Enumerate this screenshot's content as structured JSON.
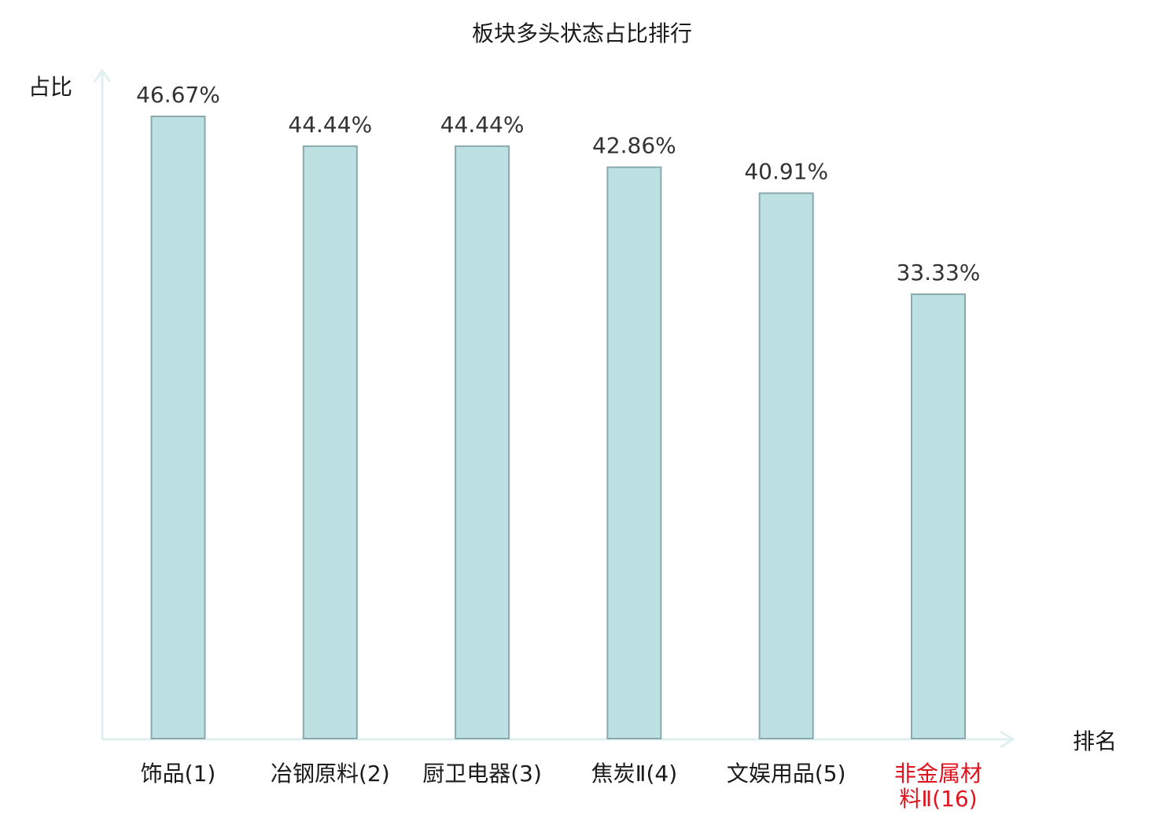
{
  "chart_data": {
    "type": "bar",
    "title": "板块多头状态占比排行",
    "ylabel": "占比",
    "xlabel": "排名",
    "categories": [
      [
        "饰品(1)"
      ],
      [
        "冶钢原料(2)"
      ],
      [
        "厨卫电器(3)"
      ],
      [
        "焦炭Ⅱ(4)"
      ],
      [
        "文娱用品(5)"
      ],
      [
        "非金属材",
        "料Ⅱ(16)"
      ]
    ],
    "values": [
      46.67,
      44.44,
      44.44,
      42.86,
      40.91,
      33.33
    ],
    "value_labels": [
      "46.67%",
      "44.44%",
      "44.44%",
      "42.86%",
      "40.91%",
      "33.33%"
    ],
    "highlight_index": 5,
    "ylim": [
      0,
      50
    ],
    "grid": false,
    "colors": {
      "bar_fill": "#bde0e3",
      "bar_stroke": "#8aa9ac",
      "axis": "#dff0ee",
      "highlight_text": "#e0141e",
      "label_text": "#1a1a1a"
    }
  }
}
